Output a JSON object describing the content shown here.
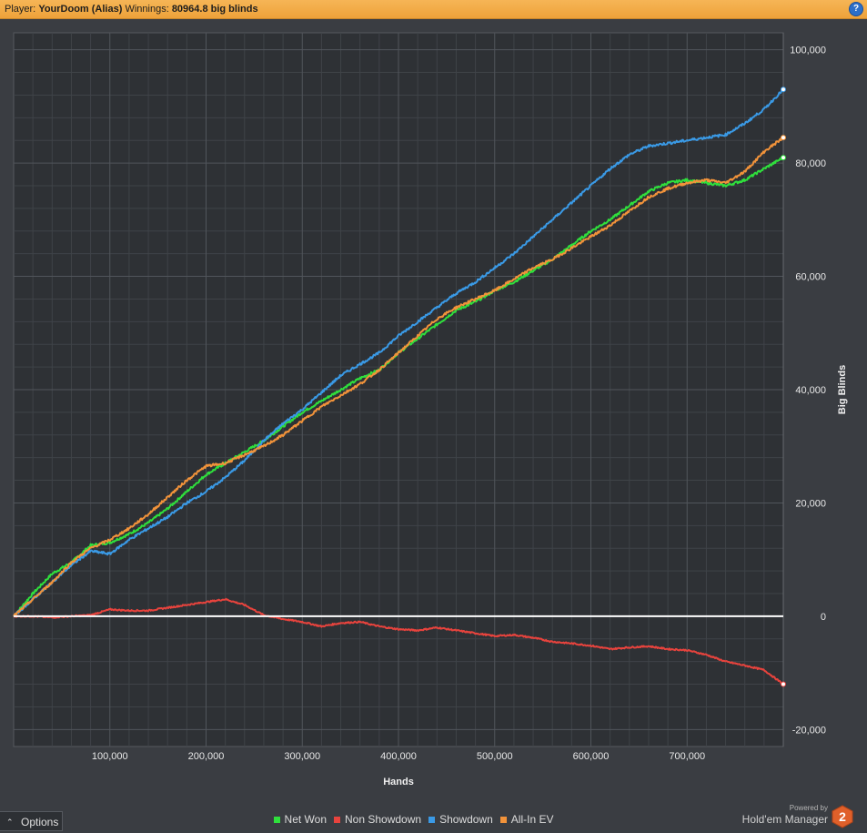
{
  "header": {
    "player_label": "Player:",
    "player_name": "YourDoom (Alias)",
    "winnings_label": "Winnings:",
    "winnings_value": "80964.8 big blinds",
    "help_icon": "question-icon"
  },
  "colors": {
    "header_bg": "#f0a53d",
    "net_won": "#2fe03c",
    "non_showdown": "#e8433d",
    "showdown": "#3a9ae6",
    "allin_ev": "#f2933a",
    "zero_line": "#ffffff"
  },
  "options": {
    "label": "Options",
    "icon": "chevron-up-icon"
  },
  "brand": {
    "powered_by": "Powered by",
    "name": "Hold'em Manager",
    "logo_text": "2"
  },
  "chart_data": {
    "type": "line",
    "title": "",
    "xlabel": "Hands",
    "ylabel": "Big Blinds",
    "xlim": [
      0,
      800000
    ],
    "ylim": [
      -23000,
      103000
    ],
    "x_ticks": [
      100000,
      200000,
      300000,
      400000,
      500000,
      600000,
      700000
    ],
    "x_tick_labels": [
      "100,000",
      "200,000",
      "300,000",
      "400,000",
      "500,000",
      "600,000",
      "700,000"
    ],
    "y_ticks": [
      100000,
      80000,
      60000,
      40000,
      20000,
      0,
      -20000
    ],
    "y_tick_labels": [
      "100,000",
      "80,000",
      "60,000",
      "40,000",
      "20,000",
      "0",
      "-20,000"
    ],
    "y_axis_side": "right",
    "grid": true,
    "legend_position": "bottom",
    "series": [
      {
        "name": "Net Won",
        "color": "#2fe03c",
        "points": [
          [
            0,
            0
          ],
          [
            20000,
            4000
          ],
          [
            40000,
            7500
          ],
          [
            60000,
            9500
          ],
          [
            80000,
            12500
          ],
          [
            100000,
            13000
          ],
          [
            120000,
            14500
          ],
          [
            140000,
            16500
          ],
          [
            160000,
            19000
          ],
          [
            180000,
            22000
          ],
          [
            200000,
            25000
          ],
          [
            220000,
            27000
          ],
          [
            240000,
            29000
          ],
          [
            260000,
            31000
          ],
          [
            280000,
            33500
          ],
          [
            300000,
            36000
          ],
          [
            320000,
            38000
          ],
          [
            340000,
            40000
          ],
          [
            360000,
            42000
          ],
          [
            380000,
            43500
          ],
          [
            400000,
            46500
          ],
          [
            420000,
            49000
          ],
          [
            440000,
            51500
          ],
          [
            460000,
            54000
          ],
          [
            480000,
            55500
          ],
          [
            500000,
            57500
          ],
          [
            520000,
            59000
          ],
          [
            540000,
            61000
          ],
          [
            560000,
            63000
          ],
          [
            580000,
            65500
          ],
          [
            600000,
            68000
          ],
          [
            620000,
            70000
          ],
          [
            640000,
            72500
          ],
          [
            660000,
            75000
          ],
          [
            680000,
            76500
          ],
          [
            700000,
            77000
          ],
          [
            720000,
            76500
          ],
          [
            740000,
            76000
          ],
          [
            760000,
            77000
          ],
          [
            780000,
            79000
          ],
          [
            800000,
            80965
          ]
        ]
      },
      {
        "name": "Non Showdown",
        "color": "#e8433d",
        "points": [
          [
            0,
            0
          ],
          [
            20000,
            0
          ],
          [
            40000,
            -200
          ],
          [
            60000,
            0
          ],
          [
            80000,
            200
          ],
          [
            100000,
            1200
          ],
          [
            120000,
            1000
          ],
          [
            140000,
            1000
          ],
          [
            160000,
            1500
          ],
          [
            180000,
            2000
          ],
          [
            200000,
            2500
          ],
          [
            220000,
            3000
          ],
          [
            240000,
            2000
          ],
          [
            260000,
            200
          ],
          [
            280000,
            -500
          ],
          [
            300000,
            -1000
          ],
          [
            320000,
            -1800
          ],
          [
            340000,
            -1200
          ],
          [
            360000,
            -1000
          ],
          [
            380000,
            -1800
          ],
          [
            400000,
            -2300
          ],
          [
            420000,
            -2500
          ],
          [
            440000,
            -2000
          ],
          [
            460000,
            -2500
          ],
          [
            480000,
            -3000
          ],
          [
            500000,
            -3500
          ],
          [
            520000,
            -3300
          ],
          [
            540000,
            -3800
          ],
          [
            560000,
            -4500
          ],
          [
            580000,
            -4800
          ],
          [
            600000,
            -5200
          ],
          [
            620000,
            -5800
          ],
          [
            640000,
            -5500
          ],
          [
            660000,
            -5300
          ],
          [
            680000,
            -5800
          ],
          [
            700000,
            -6000
          ],
          [
            720000,
            -6800
          ],
          [
            740000,
            -8000
          ],
          [
            760000,
            -8700
          ],
          [
            780000,
            -9500
          ],
          [
            800000,
            -12000
          ]
        ]
      },
      {
        "name": "Showdown",
        "color": "#3a9ae6",
        "points": [
          [
            0,
            0
          ],
          [
            20000,
            3000
          ],
          [
            40000,
            6000
          ],
          [
            60000,
            9000
          ],
          [
            80000,
            11500
          ],
          [
            100000,
            11000
          ],
          [
            120000,
            13500
          ],
          [
            140000,
            15500
          ],
          [
            160000,
            17500
          ],
          [
            180000,
            20000
          ],
          [
            200000,
            22000
          ],
          [
            220000,
            24500
          ],
          [
            240000,
            27500
          ],
          [
            260000,
            31000
          ],
          [
            280000,
            34000
          ],
          [
            300000,
            36500
          ],
          [
            320000,
            39500
          ],
          [
            340000,
            42500
          ],
          [
            360000,
            44500
          ],
          [
            380000,
            46500
          ],
          [
            400000,
            49500
          ],
          [
            420000,
            52000
          ],
          [
            440000,
            54500
          ],
          [
            460000,
            57000
          ],
          [
            480000,
            59000
          ],
          [
            500000,
            61500
          ],
          [
            520000,
            64000
          ],
          [
            540000,
            67000
          ],
          [
            560000,
            70000
          ],
          [
            580000,
            73000
          ],
          [
            600000,
            76000
          ],
          [
            620000,
            79000
          ],
          [
            640000,
            81500
          ],
          [
            660000,
            83000
          ],
          [
            680000,
            83500
          ],
          [
            700000,
            84000
          ],
          [
            720000,
            84500
          ],
          [
            740000,
            85000
          ],
          [
            760000,
            87000
          ],
          [
            780000,
            89500
          ],
          [
            800000,
            93000
          ]
        ]
      },
      {
        "name": "All-In EV",
        "color": "#f2933a",
        "points": [
          [
            0,
            0
          ],
          [
            20000,
            3000
          ],
          [
            40000,
            6000
          ],
          [
            60000,
            9500
          ],
          [
            80000,
            12000
          ],
          [
            100000,
            13500
          ],
          [
            120000,
            15500
          ],
          [
            140000,
            18000
          ],
          [
            160000,
            21000
          ],
          [
            180000,
            24000
          ],
          [
            200000,
            26500
          ],
          [
            220000,
            27000
          ],
          [
            240000,
            28500
          ],
          [
            260000,
            30000
          ],
          [
            280000,
            32000
          ],
          [
            300000,
            34500
          ],
          [
            320000,
            37000
          ],
          [
            340000,
            39000
          ],
          [
            360000,
            41000
          ],
          [
            380000,
            43500
          ],
          [
            400000,
            46500
          ],
          [
            420000,
            49500
          ],
          [
            440000,
            52500
          ],
          [
            460000,
            54500
          ],
          [
            480000,
            56000
          ],
          [
            500000,
            57500
          ],
          [
            520000,
            59500
          ],
          [
            540000,
            61500
          ],
          [
            560000,
            63000
          ],
          [
            580000,
            65000
          ],
          [
            600000,
            67000
          ],
          [
            620000,
            69000
          ],
          [
            640000,
            71500
          ],
          [
            660000,
            74000
          ],
          [
            680000,
            75500
          ],
          [
            700000,
            76500
          ],
          [
            720000,
            77000
          ],
          [
            740000,
            76500
          ],
          [
            760000,
            78500
          ],
          [
            780000,
            82000
          ],
          [
            800000,
            84500
          ]
        ]
      }
    ]
  }
}
